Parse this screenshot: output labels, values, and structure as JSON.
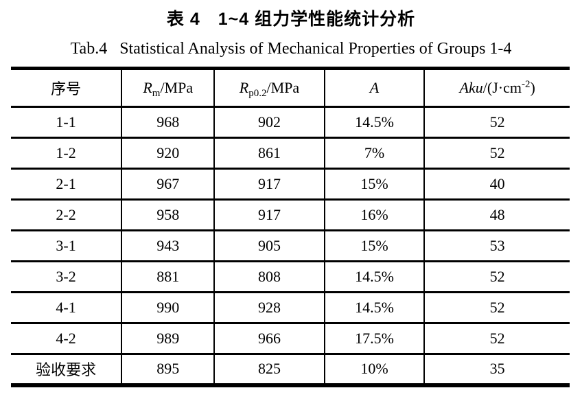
{
  "page": {
    "title_cn": "表 4　1~4 组力学性能统计分析",
    "title_en": {
      "tab_label": "Tab.4",
      "text": "Statistical Analysis of Mechanical Properties of Groups 1-4"
    }
  },
  "colors": {
    "text": "#000000",
    "background": "#ffffff",
    "rule": "#000000"
  },
  "table": {
    "columns": [
      {
        "label": "序号"
      },
      {
        "symbol": "R",
        "sub": "m",
        "unit": "/MPa"
      },
      {
        "symbol": "R",
        "sub": "p0.2",
        "unit": "/MPa"
      },
      {
        "symbol": "A"
      },
      {
        "symbol": "Aku",
        "unit_open": "/(J·cm",
        "sup": "-2",
        "unit_close": ")"
      }
    ],
    "rows": [
      {
        "cells": [
          "1-1",
          "968",
          "902",
          "14.5%",
          "52"
        ]
      },
      {
        "cells": [
          "1-2",
          "920",
          "861",
          "7%",
          "52"
        ]
      },
      {
        "cells": [
          "2-1",
          "967",
          "917",
          "15%",
          "40"
        ]
      },
      {
        "cells": [
          "2-2",
          "958",
          "917",
          "16%",
          "48"
        ]
      },
      {
        "cells": [
          "3-1",
          "943",
          "905",
          "15%",
          "53"
        ]
      },
      {
        "cells": [
          "3-2",
          "881",
          "808",
          "14.5%",
          "52"
        ]
      },
      {
        "cells": [
          "4-1",
          "990",
          "928",
          "14.5%",
          "52"
        ]
      },
      {
        "cells": [
          "4-2",
          "989",
          "966",
          "17.5%",
          "52"
        ]
      },
      {
        "cells": [
          "验收要求",
          "895",
          "825",
          "10%",
          "35"
        ]
      }
    ]
  }
}
